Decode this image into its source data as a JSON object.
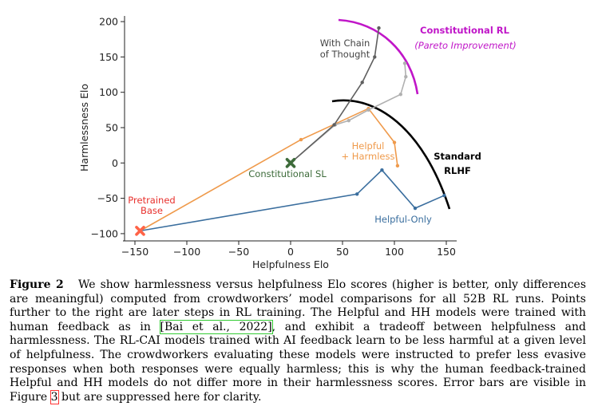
{
  "chart_data": {
    "type": "line",
    "xlabel": "Helpfulness Elo",
    "ylabel": "Harmlessness Elo",
    "xlim": [
      -160,
      160
    ],
    "ylim": [
      -108,
      208
    ],
    "xticks": [
      -150,
      -100,
      -50,
      0,
      50,
      100,
      150
    ],
    "yticks": [
      -100,
      -50,
      0,
      50,
      100,
      150,
      200
    ],
    "xtick_labels": [
      "−150",
      "−100",
      "−50",
      "0",
      "50",
      "100",
      "150"
    ],
    "ytick_labels": [
      "−100",
      "−50",
      "0",
      "50",
      "100",
      "150",
      "200"
    ],
    "series": [
      {
        "name": "Helpful-Only",
        "color": "#3a6e9e",
        "x": [
          -145,
          64,
          88,
          120,
          148
        ],
        "y": [
          -96,
          -44,
          -10,
          -64,
          -46
        ]
      },
      {
        "name": "Helpful + Harmless",
        "color": "#ef9a4b",
        "x": [
          -145,
          10,
          75,
          100,
          103
        ],
        "y": [
          -96,
          33,
          77,
          29,
          -4
        ]
      },
      {
        "name": "Constitutional RL",
        "color": "#b0b0b0",
        "x": [
          0,
          43,
          56,
          75,
          106,
          111,
          110
        ],
        "y": [
          0,
          54,
          60,
          75,
          97,
          122,
          141
        ]
      },
      {
        "name": "Constitutional RL with Chain of Thought",
        "color": "#5f5f5f",
        "x": [
          0,
          42,
          69,
          81,
          85
        ],
        "y": [
          0,
          54,
          114,
          150,
          191
        ]
      }
    ],
    "markers": [
      {
        "name": "Pretrained Base",
        "color": "#ff6347",
        "x": -145,
        "y": -96,
        "shape": "x"
      },
      {
        "name": "Constitutional SL",
        "color": "#3d6b3a",
        "x": 0,
        "y": 0,
        "shape": "x"
      }
    ],
    "annotations": [
      {
        "id": "pretrained_line1",
        "text": "Pretrained",
        "color": "#e8302c"
      },
      {
        "id": "pretrained_line2",
        "text": "Base",
        "color": "#e8302c"
      },
      {
        "id": "const_sl",
        "text": "Constitutional SL",
        "color": "#3d6b3a"
      },
      {
        "id": "cot_line1",
        "text": "With Chain",
        "color": "#444444"
      },
      {
        "id": "cot_line2",
        "text": "of Thought",
        "color": "#444444"
      },
      {
        "id": "hh_line1",
        "text": "Helpful",
        "color": "#ef9a4b"
      },
      {
        "id": "hh_line2",
        "text": "+ Harmless",
        "color": "#ef9a4b"
      },
      {
        "id": "helpful_only",
        "text": "Helpful-Only",
        "color": "#3a6e9e"
      },
      {
        "id": "std_line1",
        "text": "Standard",
        "color": "#000000"
      },
      {
        "id": "std_line2",
        "text": "RLHF",
        "color": "#000000"
      },
      {
        "id": "const_rl_title",
        "text": "Constitutional RL",
        "color": "#c016c8"
      },
      {
        "id": "const_rl_sub",
        "text": "(Pareto Improvement)",
        "color": "#c016c8"
      }
    ],
    "frontier_arcs": [
      {
        "name": "Standard RLHF frontier",
        "color": "#000000"
      },
      {
        "name": "Constitutional RL frontier",
        "color": "#c016c8"
      }
    ]
  },
  "caption": {
    "label": "Figure 2",
    "part1": "We show harmlessness versus helpfulness Elo scores (higher is better, only differences are meaningful) computed from crowdworkers’ model comparisons for all 52B RL runs. Points further to the right are later steps in RL training. The Helpful and HH models were trained with human feedback as in ",
    "ref1": "[Bai et al., 2022]",
    "part2": ", and exhibit a tradeoff between helpfulness and harmlessness. The RL-CAI models trained with AI feedback learn to be less harmful at a given level of helpfulness. The crowdworkers evaluating these models were instructed to prefer less evasive responses when both responses were equally harmless; this is why the human feedback-trained Helpful and HH models do not differ more in their harmlessness scores. Error bars are visible in Figure ",
    "ref2": "3",
    "part3": " but are suppressed here for clarity."
  }
}
